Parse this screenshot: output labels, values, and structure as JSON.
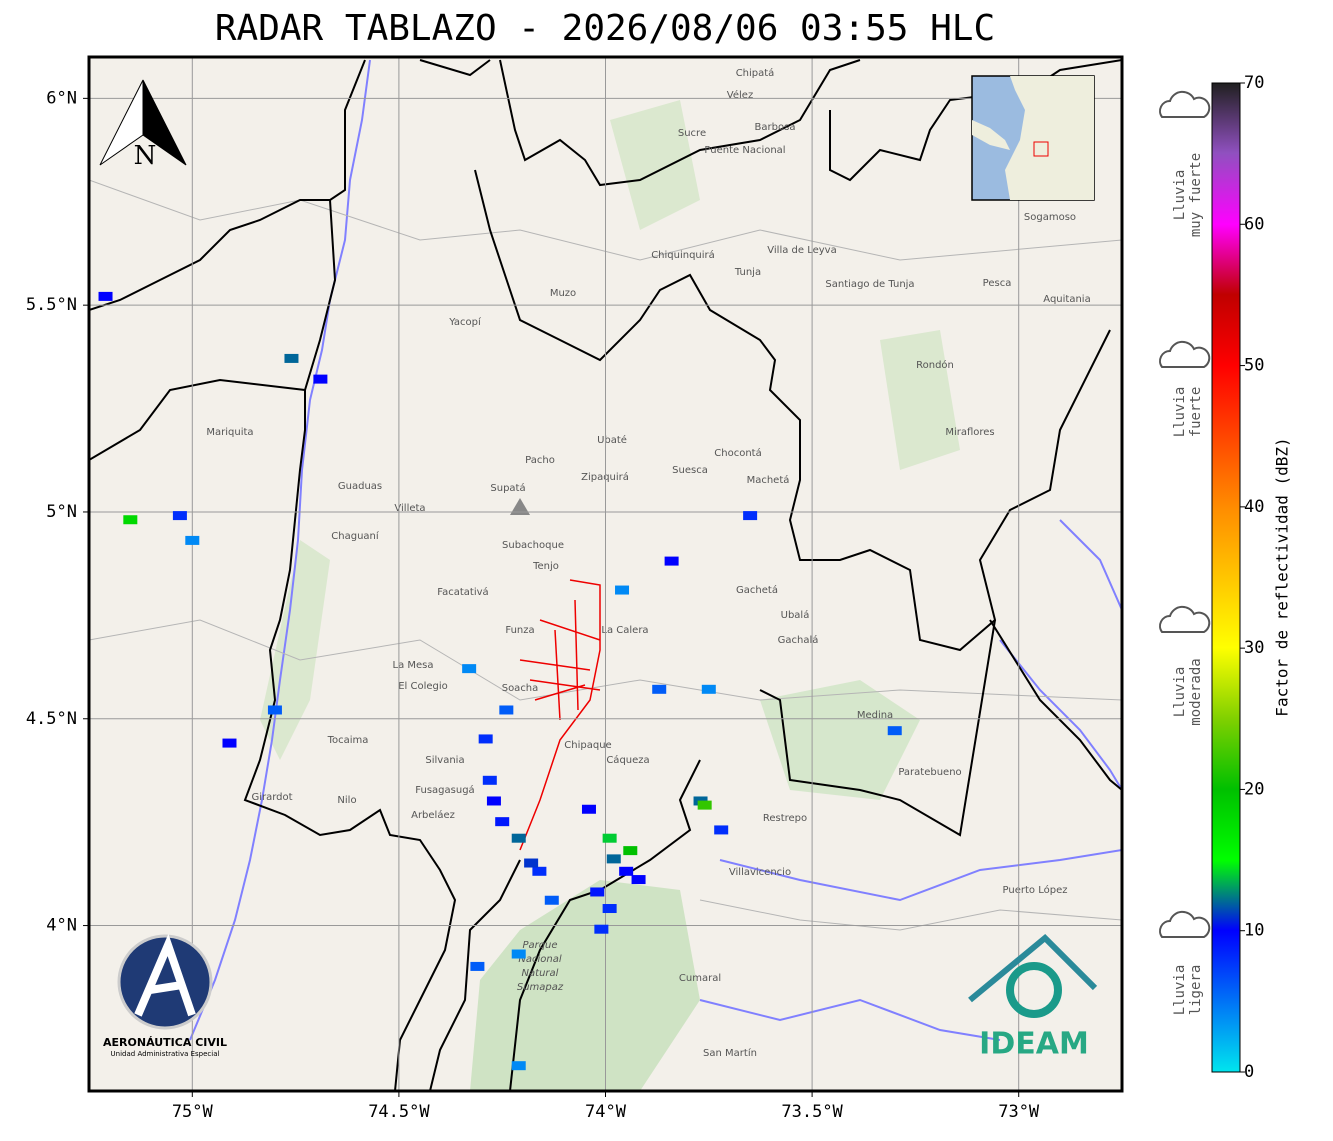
{
  "map": {
    "title": "RADAR TABLAZO - 2026/08/06 03:55 HLC",
    "xlim": [
      -75.25,
      -72.75
    ],
    "ylim": [
      3.6,
      6.1
    ],
    "xticks": [
      {
        "value": -75,
        "label": "75°W"
      },
      {
        "value": -74.5,
        "label": "74.5°W"
      },
      {
        "value": -74,
        "label": "74°W"
      },
      {
        "value": -73.5,
        "label": "73.5°W"
      },
      {
        "value": -73,
        "label": "73°W"
      }
    ],
    "yticks": [
      {
        "value": 6,
        "label": "6°N"
      },
      {
        "value": 5.5,
        "label": "5.5°N"
      },
      {
        "value": 5,
        "label": "5°N"
      },
      {
        "value": 4.5,
        "label": "4.5°N"
      },
      {
        "value": 4,
        "label": "4°N"
      }
    ],
    "grid": true,
    "north": "N",
    "echoes": [
      {
        "lon": -75.21,
        "lat": 5.52,
        "dbz": 10
      },
      {
        "lon": -74.76,
        "lat": 5.37,
        "dbz": 12
      },
      {
        "lon": -74.69,
        "lat": 5.32,
        "dbz": 10
      },
      {
        "lon": -75.15,
        "lat": 4.98,
        "dbz": 18
      },
      {
        "lon": -75.03,
        "lat": 4.99,
        "dbz": 8
      },
      {
        "lon": -75.0,
        "lat": 4.93,
        "dbz": 4
      },
      {
        "lon": -74.33,
        "lat": 4.62,
        "dbz": 4
      },
      {
        "lon": -74.29,
        "lat": 4.45,
        "dbz": 8
      },
      {
        "lon": -74.28,
        "lat": 4.35,
        "dbz": 8
      },
      {
        "lon": -74.27,
        "lat": 4.3,
        "dbz": 10
      },
      {
        "lon": -74.21,
        "lat": 4.21,
        "dbz": 12
      },
      {
        "lon": -74.16,
        "lat": 4.13,
        "dbz": 8
      },
      {
        "lon": -74.24,
        "lat": 4.52,
        "dbz": 6
      },
      {
        "lon": -74.04,
        "lat": 4.28,
        "dbz": 10
      },
      {
        "lon": -73.99,
        "lat": 4.21,
        "dbz": 14
      },
      {
        "lon": -73.95,
        "lat": 4.13,
        "dbz": 10
      },
      {
        "lon": -73.92,
        "lat": 4.11,
        "dbz": 10
      },
      {
        "lon": -73.99,
        "lat": 4.04,
        "dbz": 8
      },
      {
        "lon": -73.77,
        "lat": 4.3,
        "dbz": 12
      },
      {
        "lon": -73.72,
        "lat": 4.23,
        "dbz": 8
      },
      {
        "lon": -73.75,
        "lat": 4.57,
        "dbz": 4
      },
      {
        "lon": -73.87,
        "lat": 4.57,
        "dbz": 6
      },
      {
        "lon": -73.84,
        "lat": 4.88,
        "dbz": 10
      },
      {
        "lon": -73.65,
        "lat": 4.99,
        "dbz": 8
      },
      {
        "lon": -73.96,
        "lat": 4.81,
        "dbz": 4
      },
      {
        "lon": -73.3,
        "lat": 4.47,
        "dbz": 6
      },
      {
        "lon": -74.91,
        "lat": 4.44,
        "dbz": 10
      },
      {
        "lon": -74.8,
        "lat": 4.52,
        "dbz": 6
      },
      {
        "lon": -74.21,
        "lat": 3.93,
        "dbz": 4
      },
      {
        "lon": -74.31,
        "lat": 3.9,
        "dbz": 6
      },
      {
        "lon": -74.21,
        "lat": 3.66,
        "dbz": 4
      },
      {
        "lon": -74.13,
        "lat": 4.06,
        "dbz": 6
      },
      {
        "lon": -74.01,
        "lat": 3.99,
        "dbz": 8
      },
      {
        "lon": -74.25,
        "lat": 4.25,
        "dbz": 9
      },
      {
        "lon": -74.18,
        "lat": 4.15,
        "dbz": 11
      },
      {
        "lon": -73.98,
        "lat": 4.16,
        "dbz": 12
      },
      {
        "lon": -74.02,
        "lat": 4.08,
        "dbz": 9
      },
      {
        "lon": -73.94,
        "lat": 4.18,
        "dbz": 20
      },
      {
        "lon": -73.76,
        "lat": 4.29,
        "dbz": 22
      }
    ],
    "places": [
      "Sogamoso",
      "Villa de Leyva",
      "Tunja",
      "Santiago de Tunja",
      "Chiquinquirá",
      "Zipaquirá",
      "La Calera",
      "Soacha",
      "Villavicencio",
      "Fusagasugá",
      "Girardot",
      "La Mesa",
      "Facatativá",
      "Funza",
      "Tenjo",
      "Guaduas",
      "Villeta",
      "Pacho",
      "Muzo",
      "Gachetá",
      "Chipaque",
      "Cáqueza",
      "Chaguaní",
      "Restrepo",
      "Cumaral",
      "Medina",
      "Paratebueno",
      "Puerto López",
      "San Martín",
      "Mariquita",
      "El Colegio",
      "Silvania",
      "Arbeláez",
      "Nilo",
      "Suesca",
      "Machetá",
      "Chocontá",
      "Ubalá",
      "Gachalá",
      "Rondón",
      "Miraflores",
      "Pesca",
      "Aquitania",
      "Barbosa",
      "Puente Nacional",
      "Vélez",
      "Sucre",
      "Chipatá",
      "Supatá",
      "Yacopí",
      "Tocaima",
      "Subachoque",
      "Ubaté"
    ],
    "park": [
      "Parque",
      "Nacional",
      "Natural",
      "Sumapaz"
    ]
  },
  "colorbar": {
    "label": "Factor de reflectividad (dBZ)",
    "lim": [
      0,
      70
    ],
    "ticks": [
      0,
      10,
      20,
      30,
      40,
      50,
      60,
      70
    ]
  },
  "legend": [
    [
      "Lluvia",
      "muy fuerte"
    ],
    [
      "Lluvia",
      "fuerte"
    ],
    [
      "Lluvia",
      "moderada"
    ],
    [
      "Lluvia",
      "ligera"
    ]
  ],
  "logos": {
    "aero": "AERONÁUTICA CIVIL",
    "aero_sub": "Unidad Administrativa Especial",
    "ideam": "IDEAM"
  }
}
